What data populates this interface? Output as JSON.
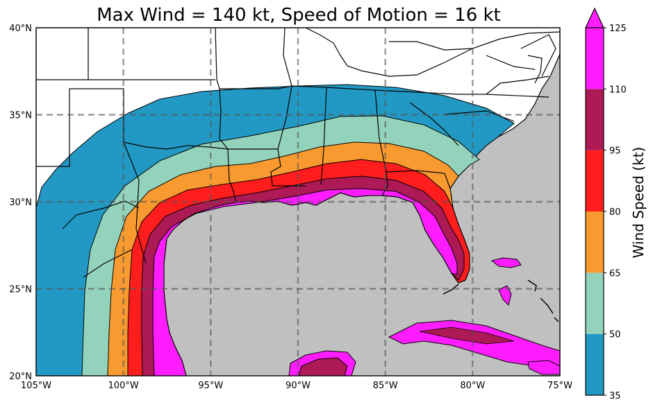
{
  "title": "Max Wind = 140 kt, Speed of Motion = 16 kt",
  "map": {
    "lon_ticks": [
      "105°W",
      "100°W",
      "95°W",
      "90°W",
      "85°W",
      "80°W",
      "75°W"
    ],
    "lat_ticks": [
      "40°N",
      "35°N",
      "30°N",
      "25°N",
      "20°N"
    ],
    "extent": {
      "lon": [
        -105,
        -75
      ],
      "lat": [
        20,
        40
      ]
    },
    "gridlines": "dashed",
    "ocean_color": "#c0c0c0",
    "land_color": "#ffffff"
  },
  "colorbar": {
    "label": "Wind Speed (kt)",
    "ticks": [
      "35",
      "50",
      "65",
      "80",
      "95",
      "110",
      "125"
    ],
    "extend": "max",
    "colors": [
      "#2299c4",
      "#94d3bb",
      "#f89a30",
      "#ff1d1d",
      "#ae1a55",
      "#ff1dff"
    ]
  },
  "chart_data": {
    "type": "heatmap",
    "title": "Max Wind = 140 kt, Speed of Motion = 16 kt",
    "max_wind_kt": 140,
    "speed_of_motion_kt": 16,
    "levels": [
      35,
      50,
      65,
      80,
      95,
      110,
      125
    ],
    "colorbar_label": "Wind Speed (kt)"
  }
}
